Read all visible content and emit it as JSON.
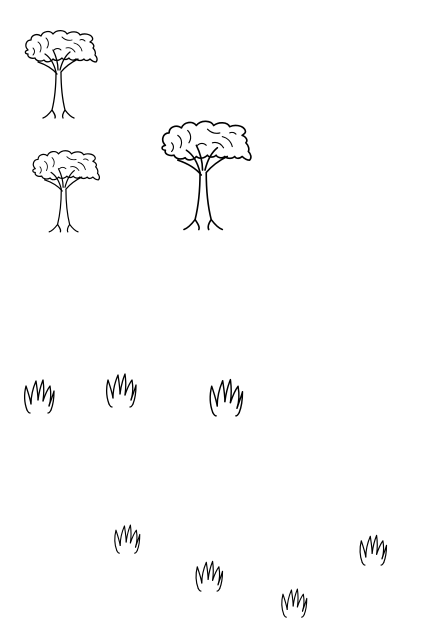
{
  "scene": {
    "background": "#ffffff",
    "line_color": "#000000",
    "trees": [
      {
        "name": "tree-icon"
      },
      {
        "name": "tree-icon"
      },
      {
        "name": "tree-icon"
      }
    ],
    "grass_tufts": [
      {
        "name": "grass-tuft-icon"
      },
      {
        "name": "grass-tuft-icon"
      },
      {
        "name": "grass-tuft-icon"
      },
      {
        "name": "grass-tuft-icon"
      },
      {
        "name": "grass-tuft-icon"
      },
      {
        "name": "grass-tuft-icon"
      },
      {
        "name": "grass-tuft-icon"
      }
    ]
  }
}
